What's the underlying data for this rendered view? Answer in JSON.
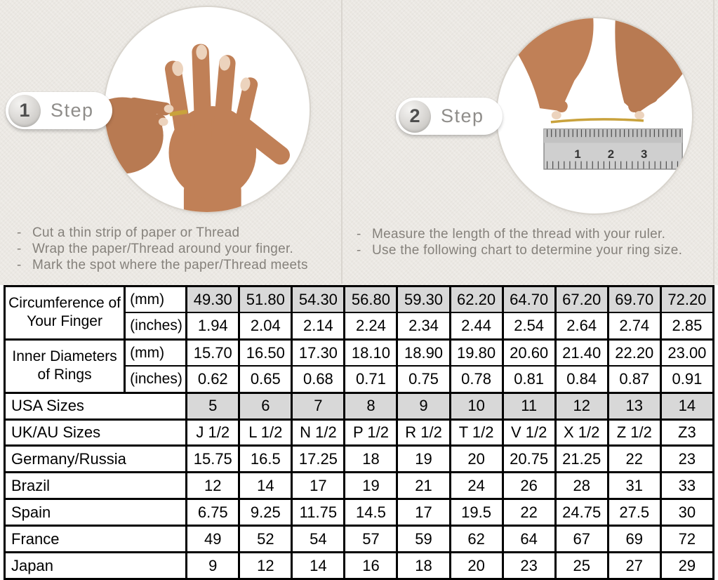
{
  "page": {
    "bullet": "-"
  },
  "steps": [
    {
      "number": "1",
      "label": "Step",
      "image": "hand-with-ring-and-thread-photo",
      "instructions": [
        "Cut a thin strip of paper or Thread",
        "Wrap the paper/Thread around your finger.",
        "Mark the spot where the paper/Thread meets"
      ]
    },
    {
      "number": "2",
      "label": "Step",
      "image": "measuring-thread-with-ruler-photo",
      "instructions": [
        "Measure the length of the thread with your ruler.",
        "Use the following chart to determine your ring size."
      ]
    }
  ],
  "ruler_numbers": [
    "1",
    "2",
    "3"
  ],
  "table": {
    "measure_groups": [
      {
        "label": "Circumference of Your Finger",
        "rows": [
          {
            "unit": "(mm)",
            "shaded": true,
            "values": [
              "49.30",
              "51.80",
              "54.30",
              "56.80",
              "59.30",
              "62.20",
              "64.70",
              "67.20",
              "69.70",
              "72.20"
            ]
          },
          {
            "unit": "(inches)",
            "shaded": false,
            "values": [
              "1.94",
              "2.04",
              "2.14",
              "2.24",
              "2.34",
              "2.44",
              "2.54",
              "2.64",
              "2.74",
              "2.85"
            ]
          }
        ]
      },
      {
        "label": "Inner Diameters of Rings",
        "rows": [
          {
            "unit": "(mm)",
            "shaded": false,
            "values": [
              "15.70",
              "16.50",
              "17.30",
              "18.10",
              "18.90",
              "19.80",
              "20.60",
              "21.40",
              "22.20",
              "23.00"
            ]
          },
          {
            "unit": "(inches)",
            "shaded": false,
            "values": [
              "0.62",
              "0.65",
              "0.68",
              "0.71",
              "0.75",
              "0.78",
              "0.81",
              "0.84",
              "0.87",
              "0.91"
            ]
          }
        ]
      }
    ],
    "size_rows": [
      {
        "label": "USA Sizes",
        "shaded": true,
        "values": [
          "5",
          "6",
          "7",
          "8",
          "9",
          "10",
          "11",
          "12",
          "13",
          "14"
        ]
      },
      {
        "label": "UK/AU Sizes",
        "shaded": false,
        "values": [
          "J 1/2",
          "L 1/2",
          "N 1/2",
          "P 1/2",
          "R 1/2",
          "T 1/2",
          "V 1/2",
          "X 1/2",
          "Z 1/2",
          "Z3"
        ]
      },
      {
        "label": "Germany/Russia",
        "shaded": false,
        "values": [
          "15.75",
          "16.5",
          "17.25",
          "18",
          "19",
          "20",
          "20.75",
          "21.25",
          "22",
          "23"
        ]
      },
      {
        "label": "Brazil",
        "shaded": false,
        "values": [
          "12",
          "14",
          "17",
          "19",
          "21",
          "24",
          "26",
          "28",
          "31",
          "33"
        ]
      },
      {
        "label": "Spain",
        "shaded": false,
        "values": [
          "6.75",
          "9.25",
          "11.75",
          "14.5",
          "17",
          "19.5",
          "22",
          "24.75",
          "27.5",
          "30"
        ]
      },
      {
        "label": "France",
        "shaded": false,
        "values": [
          "49",
          "52",
          "54",
          "57",
          "59",
          "62",
          "64",
          "67",
          "69",
          "72"
        ]
      },
      {
        "label": "Japan",
        "shaded": false,
        "values": [
          "9",
          "12",
          "14",
          "16",
          "18",
          "20",
          "23",
          "25",
          "27",
          "29"
        ]
      }
    ]
  },
  "colors": {
    "page_bg": "#ebe8e3",
    "shaded_cell": "#d8d8d8",
    "table_border": "#000000",
    "step_text": "#8f8d8a",
    "instruction_text": "#85817b",
    "skin_tone": "#c08057",
    "gold_thread": "#c9a23c"
  }
}
